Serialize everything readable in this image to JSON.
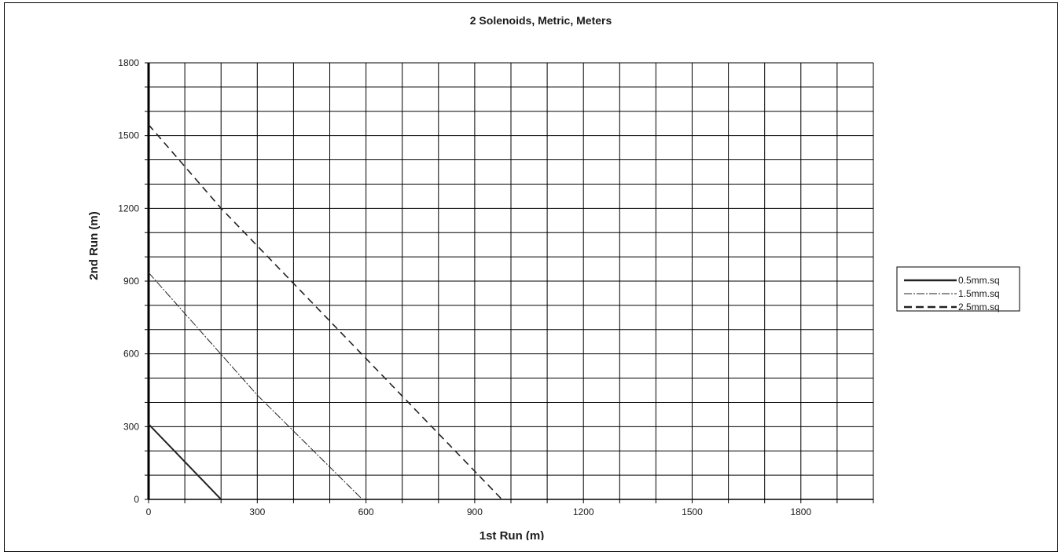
{
  "chart_data": {
    "type": "line",
    "title": "2 Solenoids, Metric, Meters",
    "xlabel": "1st Run (m)",
    "ylabel": "2nd Run (m)",
    "xlim": [
      0,
      2000
    ],
    "ylim": [
      0,
      1800
    ],
    "x_ticks": [
      "0",
      "300",
      "600",
      "900",
      "1200",
      "1500",
      "1800"
    ],
    "y_ticks": [
      "0",
      "300",
      "600",
      "900",
      "1200",
      "1500",
      "1800"
    ],
    "x_tick_values": [
      0,
      300,
      600,
      900,
      1200,
      1500,
      1800
    ],
    "y_tick_values": [
      0,
      300,
      600,
      900,
      1200,
      1500,
      1800
    ],
    "x_grid_step": 100,
    "y_grid_step": 100,
    "grid": true,
    "legend_position": "right",
    "series": [
      {
        "name": "0.5mm.sq",
        "style": "solid",
        "color": "#222222",
        "x": [
          0,
          100,
          200
        ],
        "y": [
          310,
          155,
          0
        ]
      },
      {
        "name": "1.5mm.sq",
        "style": "dash-dot",
        "color": "#222222",
        "x": [
          0,
          300,
          590
        ],
        "y": [
          935,
          430,
          0
        ]
      },
      {
        "name": "2.5mm.sq",
        "style": "dashed",
        "color": "#222222",
        "x": [
          0,
          200,
          975
        ],
        "y": [
          1545,
          1200,
          0
        ]
      }
    ]
  }
}
